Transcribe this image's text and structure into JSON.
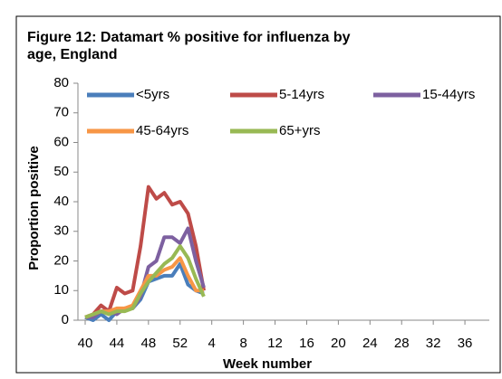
{
  "chart_data": {
    "type": "line",
    "title": "Figure 12: Datamart % positive for influenza by age, England",
    "x_label": "Week number",
    "y_label": "Proportion positive",
    "categories": [
      "40",
      null,
      null,
      null,
      "44",
      null,
      null,
      null,
      "48",
      null,
      null,
      null,
      "52",
      null,
      null,
      null,
      "4",
      null,
      null,
      null,
      "8",
      null,
      null,
      null,
      "12",
      null,
      null,
      null,
      "16",
      null,
      null,
      null,
      "20",
      null,
      null,
      null,
      "24",
      null,
      null,
      null,
      "28",
      null,
      null,
      null,
      "32",
      null,
      null,
      null,
      "36",
      null,
      null,
      null
    ],
    "series": [
      {
        "name": "<5yrs",
        "color": "#4a7ebb",
        "values": [
          1,
          0,
          2,
          0,
          3,
          4,
          4,
          7,
          13,
          14,
          15,
          15,
          19,
          12,
          10,
          9,
          null,
          null,
          null,
          null,
          null,
          null,
          null,
          null,
          null,
          null,
          null,
          null,
          null,
          null,
          null,
          null,
          null,
          null,
          null,
          null,
          null,
          null,
          null,
          null,
          null,
          null,
          null,
          null,
          null,
          null,
          null,
          null,
          null,
          null,
          null,
          null
        ]
      },
      {
        "name": "5-14yrs",
        "color": "#be4b48",
        "values": [
          1,
          2,
          5,
          3,
          11,
          9,
          10,
          25,
          45,
          41,
          43,
          39,
          40,
          36,
          25,
          10,
          null,
          null,
          null,
          null,
          null,
          null,
          null,
          null,
          null,
          null,
          null,
          null,
          null,
          null,
          null,
          null,
          null,
          null,
          null,
          null,
          null,
          null,
          null,
          null,
          null,
          null,
          null,
          null,
          null,
          null,
          null,
          null,
          null,
          null,
          null,
          null
        ]
      },
      {
        "name": "15-44yrs",
        "color": "#7d60a0",
        "values": [
          1,
          1,
          3,
          3,
          2,
          4,
          4,
          8,
          18,
          20,
          28,
          28,
          26,
          31,
          20,
          11,
          null,
          null,
          null,
          null,
          null,
          null,
          null,
          null,
          null,
          null,
          null,
          null,
          null,
          null,
          null,
          null,
          null,
          null,
          null,
          null,
          null,
          null,
          null,
          null,
          null,
          null,
          null,
          null,
          null,
          null,
          null,
          null,
          null,
          null,
          null,
          null
        ]
      },
      {
        "name": "45-64yrs",
        "color": "#f79646",
        "values": [
          1,
          2,
          3,
          3,
          4,
          4,
          5,
          10,
          15,
          15,
          17,
          18,
          21,
          15,
          10,
          10,
          null,
          null,
          null,
          null,
          null,
          null,
          null,
          null,
          null,
          null,
          null,
          null,
          null,
          null,
          null,
          null,
          null,
          null,
          null,
          null,
          null,
          null,
          null,
          null,
          null,
          null,
          null,
          null,
          null,
          null,
          null,
          null,
          null,
          null,
          null,
          null
        ]
      },
      {
        "name": "65+yrs",
        "color": "#98b954",
        "values": [
          1,
          2,
          3,
          2,
          3,
          3,
          4,
          9,
          13,
          16,
          19,
          21,
          25,
          21,
          14,
          8,
          null,
          null,
          null,
          null,
          null,
          null,
          null,
          null,
          null,
          null,
          null,
          null,
          null,
          null,
          null,
          null,
          null,
          null,
          null,
          null,
          null,
          null,
          null,
          null,
          null,
          null,
          null,
          null,
          null,
          null,
          null,
          null,
          null,
          null,
          null,
          null
        ]
      }
    ],
    "ylim": [
      0,
      80
    ],
    "yticks": [
      0,
      10,
      20,
      30,
      40,
      50,
      60,
      70,
      80
    ]
  }
}
